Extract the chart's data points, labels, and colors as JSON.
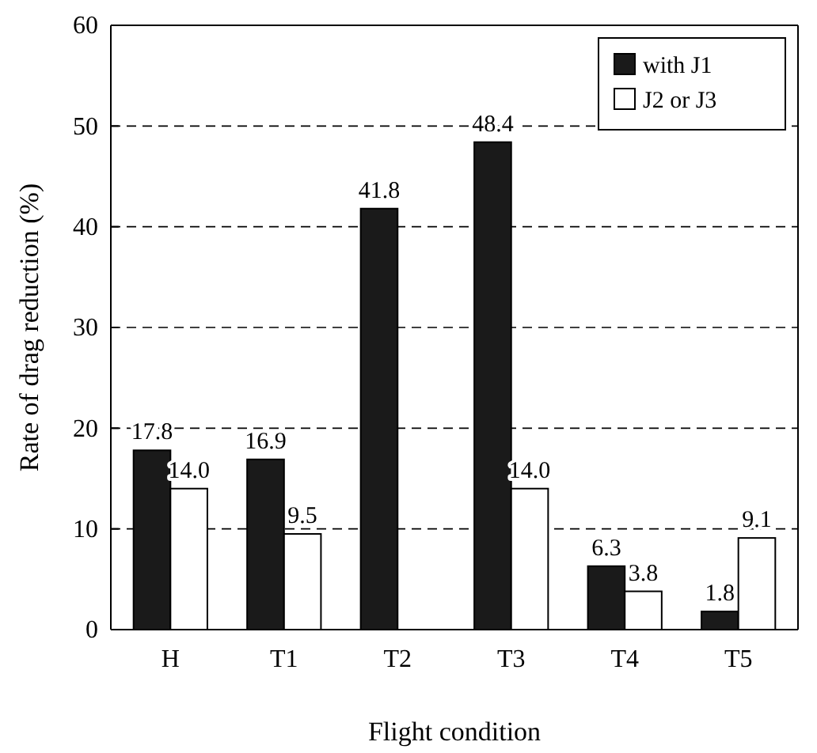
{
  "chart_data": {
    "type": "bar",
    "xlabel": "Flight condition",
    "ylabel": "Rate of drag reduction (%)",
    "categories": [
      "H",
      "T1",
      "T2",
      "T3",
      "T4",
      "T5"
    ],
    "series": [
      {
        "name": "with J1",
        "color": "#1a1a1a",
        "values": [
          17.8,
          16.9,
          41.8,
          48.4,
          6.3,
          1.8
        ],
        "value_labels": [
          "17.8",
          "16.9",
          "41.8",
          "48.4",
          "6.3",
          "1.8"
        ]
      },
      {
        "name": "J2 or J3",
        "color": "#ffffff",
        "values": [
          14.0,
          9.5,
          null,
          14.0,
          3.8,
          9.1
        ],
        "value_labels": [
          "14.0",
          "9.5",
          null,
          "14.0",
          "3.8",
          "9.1"
        ]
      }
    ],
    "ylim": [
      0,
      60
    ],
    "yticks": [
      0,
      10,
      20,
      30,
      40,
      50,
      60
    ],
    "grid": "y",
    "legend": "top right"
  }
}
